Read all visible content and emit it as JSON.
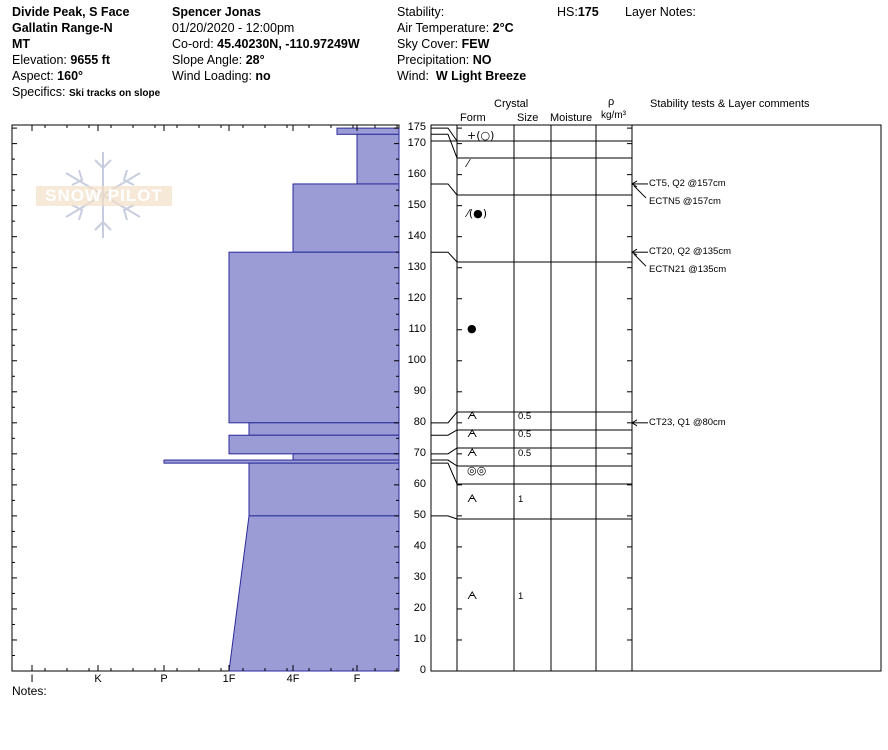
{
  "header": {
    "location": "Divide Peak, S Face",
    "range": "Gallatin Range-N",
    "state": "MT",
    "elevation_label": "Elevation:",
    "elevation_value": "9655 ft",
    "aspect_label": "Aspect:",
    "aspect_value": "160°",
    "specifics_label": "Specifics:",
    "specifics_value": "Ski tracks on slope",
    "observer": "Spencer Jonas",
    "datetime": "01/20/2020 - 12:00pm",
    "coord_label": "Co-ord:",
    "coord_value": "45.40230N, -110.97249W",
    "slope_label": "Slope Angle:",
    "slope_value": "28°",
    "wind_loading_label": "Wind Loading:",
    "wind_loading_value": "no",
    "stability_label": "Stability:",
    "air_temp_label": "Air Temperature:",
    "air_temp_value": "2°C",
    "sky_label": "Sky Cover:",
    "sky_value": "FEW",
    "precip_label": "Precipitation:",
    "precip_value": "NO",
    "wind_label": "Wind:",
    "wind_value": "W Light Breeze",
    "hs_label": "HS:",
    "hs_value": "175",
    "layer_notes_label": "Layer Notes:"
  },
  "watermark": {
    "text": "SNOW PILOT"
  },
  "notes_label": "Notes:",
  "columns": {
    "crystal": "Crystal",
    "form": "Form",
    "size": "Size",
    "moisture": "Moisture",
    "rho": "ρ",
    "density_unit": "kg/m³",
    "stability": "Stability tests & Layer comments"
  },
  "colors": {
    "fill": "#9b9bd6",
    "stroke": "#2a2a9a"
  },
  "chart_data": {
    "type": "bar",
    "orientation": "horizontal-profile",
    "hardness_scale": [
      "I",
      "K",
      "P",
      "1F",
      "4F",
      "F"
    ],
    "hardness_scale_note": "hardness axis decreases to the right (F at right edge)",
    "ylim": [
      0,
      175
    ],
    "yticks": [
      "0",
      "10",
      "20",
      "30",
      "40",
      "50",
      "60",
      "70",
      "80",
      "90",
      "100",
      "110",
      "120",
      "130",
      "140",
      "150",
      "160",
      "170",
      "175"
    ],
    "layers": [
      {
        "top": 175,
        "bottom": 173,
        "hardness_left": "F-"
      },
      {
        "top": 173,
        "bottom": 157,
        "hardness_left": "F"
      },
      {
        "top": 157,
        "bottom": 135,
        "hardness_left": "4F"
      },
      {
        "top": 135,
        "bottom": 80,
        "hardness_left": "1F"
      },
      {
        "top": 80,
        "bottom": 76,
        "hardness_left": "1F+"
      },
      {
        "top": 76,
        "bottom": 70,
        "hardness_left": "1F"
      },
      {
        "top": 70,
        "bottom": 68,
        "hardness_left": "4F"
      },
      {
        "top": 68,
        "bottom": 67,
        "hardness_left": "P"
      },
      {
        "top": 67,
        "bottom": 50,
        "hardness_left": "1F+"
      },
      {
        "top": 50,
        "bottom": 0,
        "hardness_left_top": "1F+",
        "hardness_left_bottom": "1F"
      }
    ],
    "grain_rows": [
      {
        "y": 172,
        "form": "+(○)",
        "size": ""
      },
      {
        "y": 163,
        "form": "⁄",
        "size": ""
      },
      {
        "y": 147,
        "form": "⁄(●)",
        "size": ""
      },
      {
        "y": 110,
        "form": "●",
        "size": ""
      },
      {
        "y": 82,
        "form": "ᗅ",
        "size": "0.5"
      },
      {
        "y": 76,
        "form": "ᗅ",
        "size": "0.5"
      },
      {
        "y": 70,
        "form": "ᗅ",
        "size": "0.5"
      },
      {
        "y": 64,
        "form": "◎◎",
        "size": ""
      },
      {
        "y": 55,
        "form": "ᗅ",
        "size": "1"
      },
      {
        "y": 24,
        "form": "ᗅ",
        "size": "1"
      }
    ],
    "tests": [
      {
        "y": 157,
        "text1": "CT5, Q2 @157cm",
        "text2": "ECTN5 @157cm"
      },
      {
        "y": 135,
        "text1": "CT20, Q2 @135cm",
        "text2": "ECTN21 @135cm"
      },
      {
        "y": 80,
        "text1": "CT23, Q1 @80cm",
        "text2": ""
      }
    ]
  }
}
